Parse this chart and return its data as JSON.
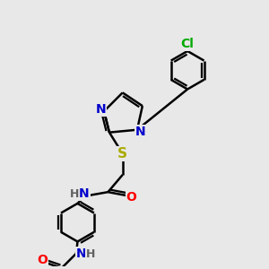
{
  "fig_bg": "#e8e8e8",
  "bond_color": "#000000",
  "bond_width": 1.8,
  "atom_colors": {
    "C": "#000000",
    "N": "#0000cc",
    "O": "#ff0000",
    "S": "#aaaa00",
    "Cl": "#00aa00",
    "H": "#606060"
  },
  "font_size": 10
}
